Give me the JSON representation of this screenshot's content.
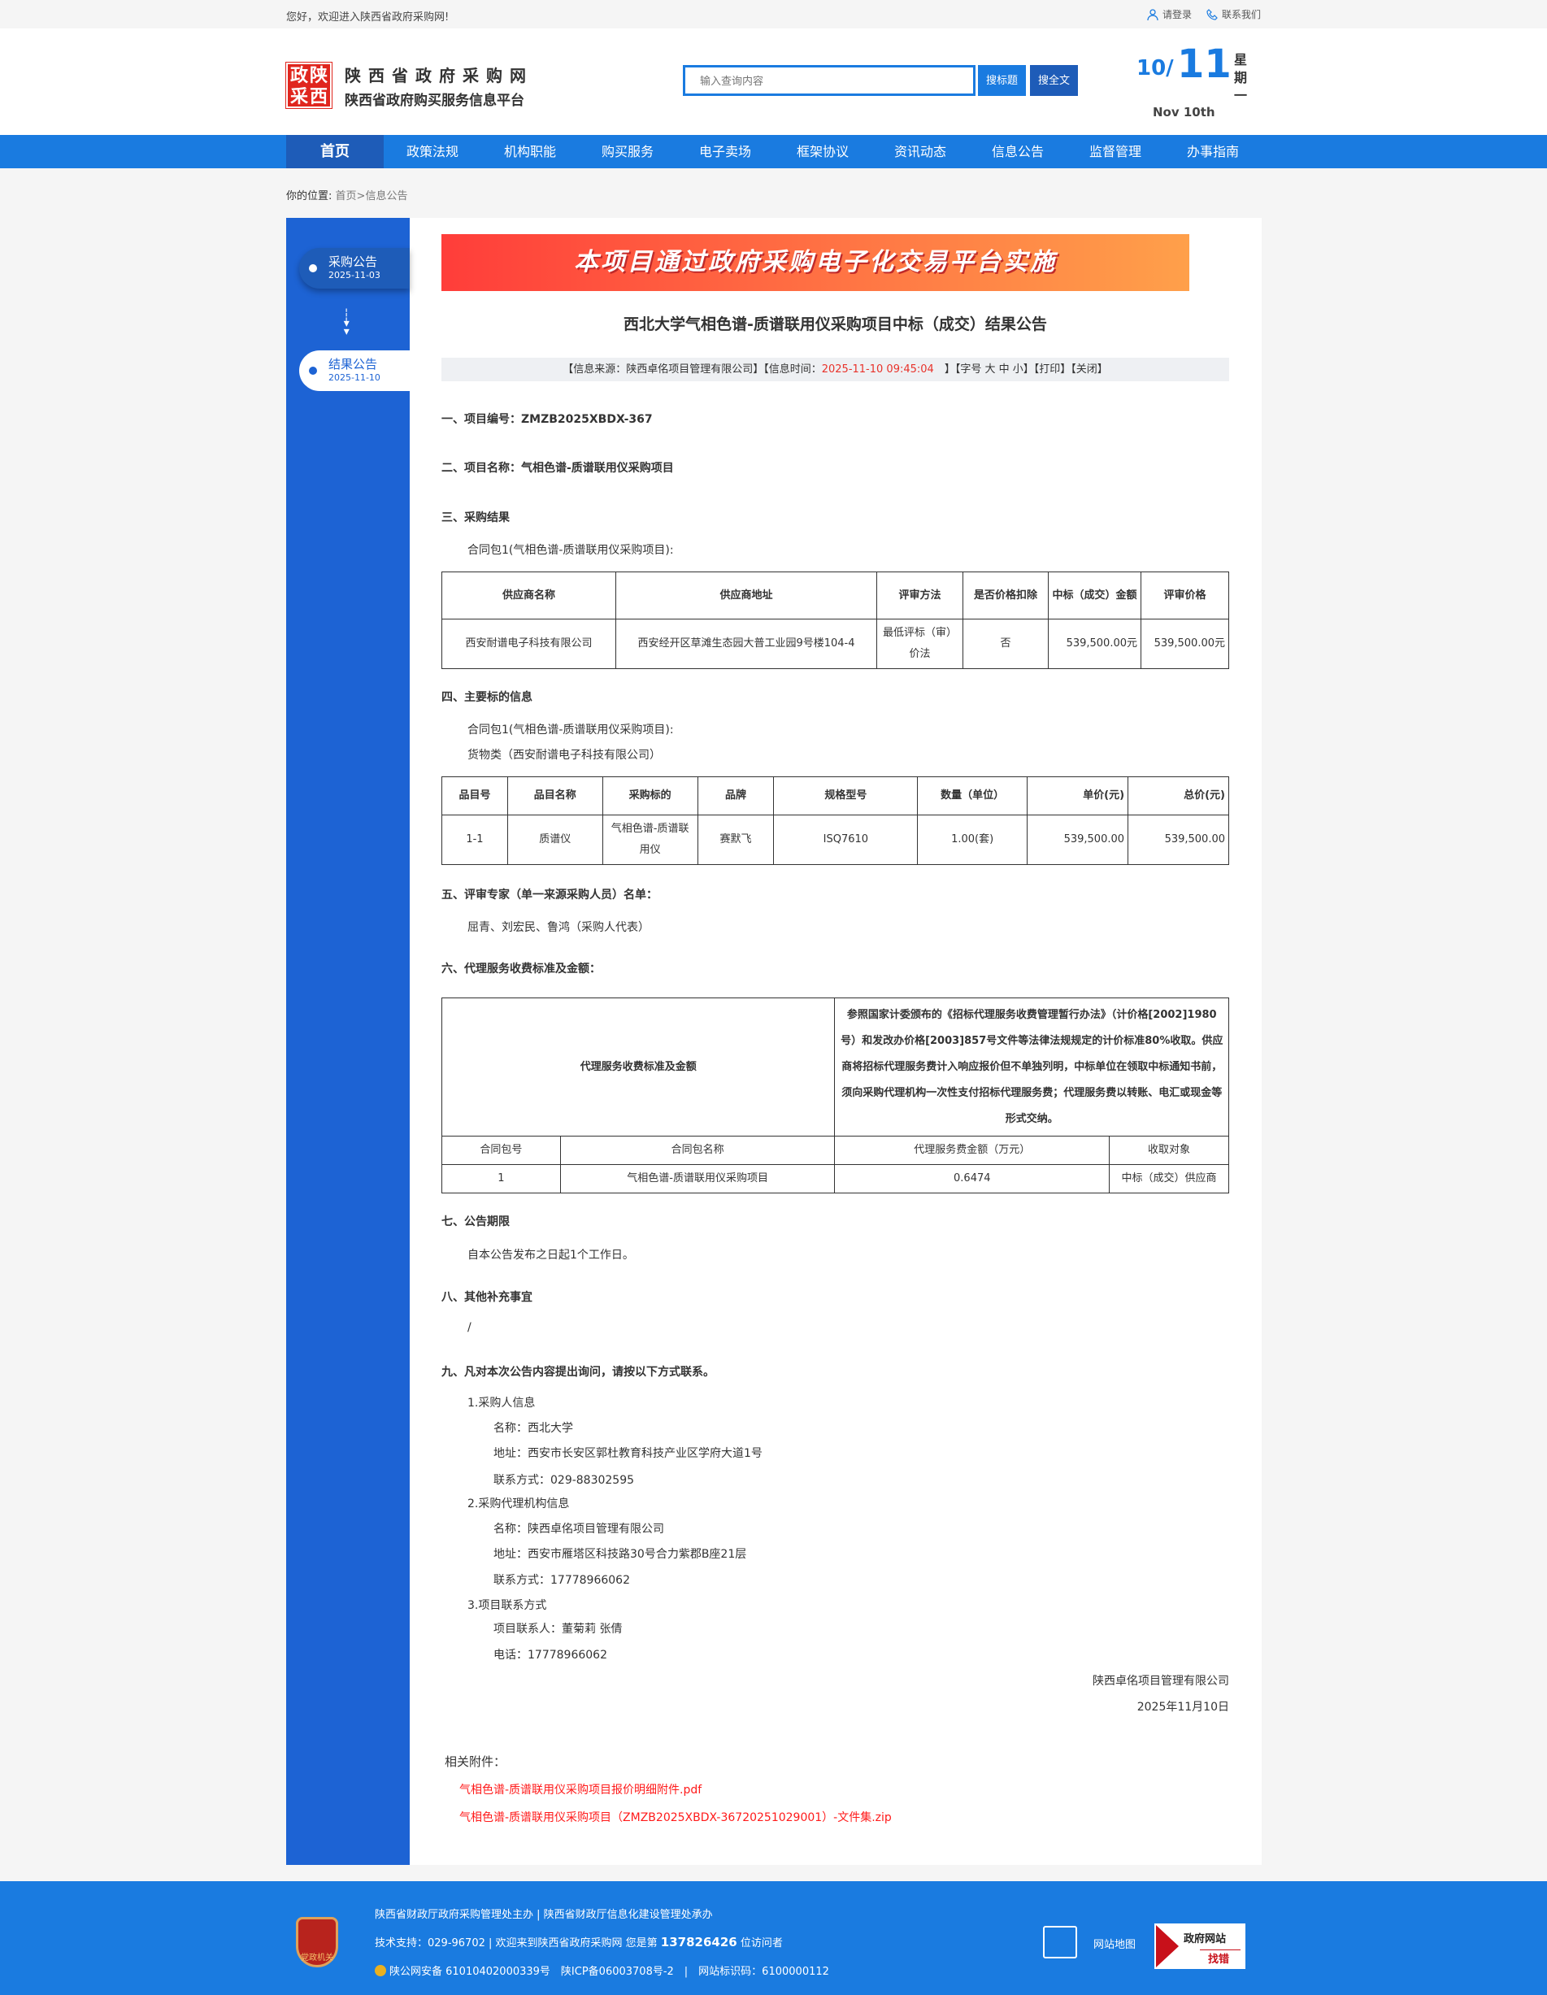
{
  "topbar": {
    "welcome": "您好，欢迎进入陕西省政府采购网!",
    "login": "请登录",
    "contact": "联系我们"
  },
  "header": {
    "logo_text": [
      "政",
      "陕",
      "采",
      "西"
    ],
    "site_name": "陕西省政府采购网",
    "site_sub": "陕西省政府购买服务信息平台",
    "search_placeholder": "输入查询内容",
    "btn_title": "搜标题",
    "btn_full": "搜全文",
    "date_month": "10/",
    "date_day": "11",
    "date_en": "Nov 10th",
    "weekday": "星期一",
    "accent": "#1a7be0"
  },
  "nav": [
    "首页",
    "政策法规",
    "机构职能",
    "购买服务",
    "电子卖场",
    "框架协议",
    "资讯动态",
    "信息公告",
    "监督管理",
    "办事指南"
  ],
  "breadcrumb": {
    "label": "你的位置:",
    "home": "首页",
    "current": ">信息公告"
  },
  "sidebar": [
    {
      "title": "采购公告",
      "date": "2025-11-03"
    },
    {
      "title": "结果公告",
      "date": "2025-11-10"
    }
  ],
  "article": {
    "banner": "本项目通过政府采购电子化交易平台实施",
    "title": "西北大学气相色谱-质谱联用仪采购项目中标（成交）结果公告",
    "meta": {
      "source": "【信息来源：陕西卓佲项目管理有限公司】",
      "time_label": "【信息时间：",
      "time": "2025-11-10 09:45:04",
      "time_end": "】",
      "font": "【字号 大 中 小】",
      "print": "【打印】",
      "close": "【关闭】"
    },
    "s1": "一、项目编号：ZMZB2025XBDX-367",
    "s2": "二、项目名称：气相色谱-质谱联用仪采购项目",
    "s3": "三、采购结果",
    "s3_pkg": "合同包1(气相色谱-质谱联用仪采购项目):",
    "t1": {
      "headers": [
        "供应商名称",
        "供应商地址",
        "评审方法",
        "是否价格扣除",
        "中标（成交）金额",
        "评审价格"
      ],
      "row": [
        "西安耐谱电子科技有限公司",
        "西安经开区草滩生态园大普工业园9号楼104-4",
        "最低评标（审）价法",
        "否",
        "539,500.00元",
        "539,500.00元"
      ]
    },
    "s4": "四、主要标的信息",
    "s4_pkg": "合同包1(气相色谱-质谱联用仪采购项目):",
    "s4_cat": "货物类（西安耐谱电子科技有限公司）",
    "t2": {
      "headers": [
        "品目号",
        "品目名称",
        "采购标的",
        "品牌",
        "规格型号",
        "数量（单位）",
        "单价(元)",
        "总价(元)"
      ],
      "row": [
        "1-1",
        "质谱仪",
        "气相色谱-质谱联用仪",
        "赛默飞",
        "ISQ7610",
        "1.00(套)",
        "539,500.00",
        "539,500.00"
      ]
    },
    "s5": "五、评审专家（单一来源采购人员）名单：",
    "s5_list": "屈青、刘宏民、鲁鸿（采购人代表）",
    "s6": "六、代理服务收费标准及金额：",
    "t3": {
      "label": "代理服务收费标准及金额",
      "desc": "参照国家计委颁布的《招标代理服务收费管理暂行办法》（计价格[2002]1980号）和发改办价格[2003]857号文件等法律法规规定的计价标准80%收取。供应商将招标代理服务费计入响应报价但不单独列明，中标单位在领取中标通知书前，须向采购代理机构一次性支付招标代理服务费；代理服务费以转账、电汇或现金等形式交纳。",
      "headers": [
        "合同包号",
        "合同包名称",
        "代理服务费金额（万元）",
        "收取对象"
      ],
      "row": [
        "1",
        "气相色谱-质谱联用仪采购项目",
        "0.6474",
        "中标（成交）供应商"
      ]
    },
    "s7": "七、公告期限",
    "s7_text": "自本公告发布之日起1个工作日。",
    "s8": "八、其他补充事宜",
    "s8_text": "/",
    "s9": "九、凡对本次公告内容提出询问，请按以下方式联系。",
    "contacts": {
      "c1": "1.采购人信息",
      "c1_name": "名称：西北大学",
      "c1_addr": "地址：西安市长安区郭杜教育科技产业区学府大道1号",
      "c1_tel": "联系方式：029-88302595",
      "c2": "2.采购代理机构信息",
      "c2_name": "名称：陕西卓佲项目管理有限公司",
      "c2_addr": "地址：西安市雁塔区科技路30号合力紫郡B座21层",
      "c2_tel": "联系方式：17778966062",
      "c3": "3.项目联系方式",
      "c3_person": "项目联系人：董菊莉 张倩",
      "c3_tel": "电话：17778966062"
    },
    "signature": "陕西卓佲项目管理有限公司",
    "sign_date": "2025年11月10日",
    "attach_label": "相关附件：",
    "attachments": [
      "气相色谱-质谱联用仪采购项目报价明细附件.pdf",
      "气相色谱-质谱联用仪采购项目（ZMZB2025XBDX-36720251029001）-文件集.zip"
    ]
  },
  "footer": {
    "line1": "陕西省财政厅政府采购管理处主办 | 陕西省财政厅信息化建设管理处承办",
    "line2_pre": "技术支持：029-96702 | 欢迎来到陕西省政府采购网 您是第 ",
    "visitors": "137826426",
    "line2_post": " 位访问者",
    "line3": "陕公网安备 61010402000339号　陕ICP备06003708号-2　|　网站标识码：6100000112",
    "badge": "党政机关",
    "sitemap": "网站地图",
    "jiucuo_a": "政府网站",
    "jiucuo_b": "找错"
  }
}
